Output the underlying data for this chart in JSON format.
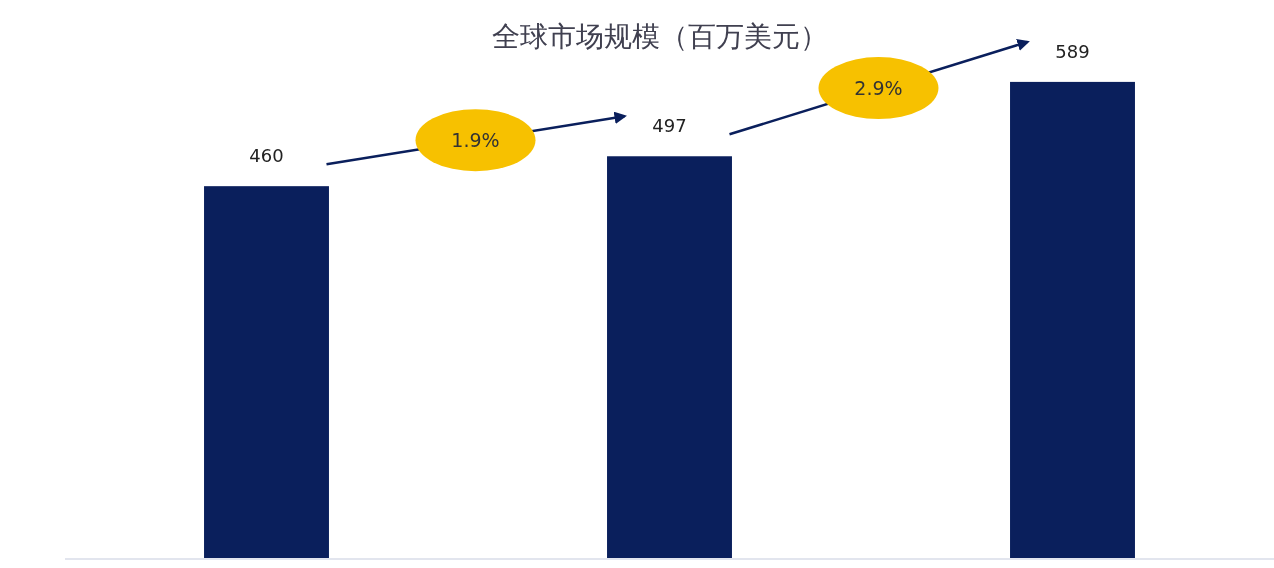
{
  "chart_data": {
    "type": "bar",
    "title": "全球市场规模（百万美元）",
    "categories": [
      null,
      null,
      null
    ],
    "values": [
      460,
      497,
      589
    ],
    "color": "#0a1f5c",
    "data_labels": true,
    "annotations": [
      "1.9%",
      "2.9%"
    ]
  }
}
